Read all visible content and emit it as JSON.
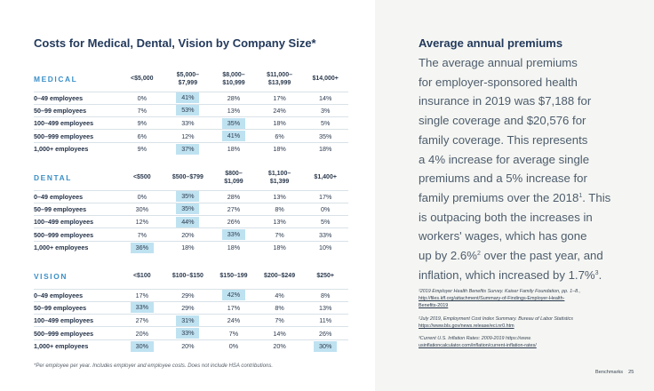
{
  "left_title": "Costs for Medical, Dental, Vision by Company Size*",
  "tables": [
    {
      "category": "MEDICAL",
      "columns": [
        "<$5,000",
        "$5,000–\n$7,999",
        "$8,000–\n$10,999",
        "$11,000–\n$13,999",
        "$14,000+"
      ],
      "rows": [
        {
          "label": "0–49 employees",
          "values": [
            "0%",
            "41%",
            "28%",
            "17%",
            "14%"
          ],
          "highlight": 1
        },
        {
          "label": "50–99 employees",
          "values": [
            "7%",
            "53%",
            "13%",
            "24%",
            "3%"
          ],
          "highlight": 1
        },
        {
          "label": "100–499 employees",
          "values": [
            "9%",
            "33%",
            "35%",
            "18%",
            "5%"
          ],
          "highlight": 2
        },
        {
          "label": "500–999 employees",
          "values": [
            "6%",
            "12%",
            "41%",
            "6%",
            "35%"
          ],
          "highlight": 2
        },
        {
          "label": "1,000+ employees",
          "values": [
            "9%",
            "37%",
            "18%",
            "18%",
            "18%"
          ],
          "highlight": 1
        }
      ]
    },
    {
      "category": "DENTAL",
      "columns": [
        "<$500",
        "$500–$799",
        "$800–\n$1,099",
        "$1,100–\n$1,399",
        "$1,400+"
      ],
      "rows": [
        {
          "label": "0–49 employees",
          "values": [
            "0%",
            "35%",
            "28%",
            "13%",
            "17%"
          ],
          "highlight": 1
        },
        {
          "label": "50–99 employees",
          "values": [
            "30%",
            "35%",
            "27%",
            "8%",
            "0%"
          ],
          "highlight": 1
        },
        {
          "label": "100–499 employees",
          "values": [
            "12%",
            "44%",
            "26%",
            "13%",
            "5%"
          ],
          "highlight": 1
        },
        {
          "label": "500–999 employees",
          "values": [
            "7%",
            "20%",
            "33%",
            "7%",
            "33%"
          ],
          "highlight": 2
        },
        {
          "label": "1,000+ employees",
          "values": [
            "36%",
            "18%",
            "18%",
            "18%",
            "10%"
          ],
          "highlight": 0
        }
      ]
    },
    {
      "category": "VISION",
      "columns": [
        "<$100",
        "$100–$150",
        "$150–199",
        "$200–$249",
        "$250+"
      ],
      "rows": [
        {
          "label": "0–49 employees",
          "values": [
            "17%",
            "29%",
            "42%",
            "4%",
            "8%"
          ],
          "highlight": 2
        },
        {
          "label": "50–99 employees",
          "values": [
            "33%",
            "29%",
            "17%",
            "8%",
            "13%"
          ],
          "highlight": 0
        },
        {
          "label": "100–499 employees",
          "values": [
            "27%",
            "31%",
            "24%",
            "7%",
            "11%"
          ],
          "highlight": 1
        },
        {
          "label": "500–999 employees",
          "values": [
            "20%",
            "33%",
            "7%",
            "14%",
            "26%"
          ],
          "highlight": 1
        },
        {
          "label": "1,000+ employees",
          "values": [
            "30%",
            "20%",
            "0%",
            "20%",
            "30%"
          ],
          "highlight": [
            0,
            4
          ]
        }
      ]
    }
  ],
  "footnote": "*Per employee per year. Includes employer and employee costs. Does not include HSA contributions.",
  "right_title": "Average annual premiums",
  "body_lines": [
    {
      "text": "The average annual premiums"
    },
    {
      "text": "for employer-sponsored health"
    },
    {
      "text": "insurance in 2019 was $7,188 for"
    },
    {
      "text": "single coverage and $20,576 for"
    },
    {
      "text": "family coverage. This represents"
    },
    {
      "text": "a 4% increase for average single"
    },
    {
      "text": "premiums and a 5% increase for"
    },
    {
      "text": "family premiums over the 2018",
      "sup": "1",
      "after": ". This"
    },
    {
      "text": "is outpacing both the increases in"
    },
    {
      "text": "workers' wages, which has gone"
    },
    {
      "text": "up by 2.6%",
      "sup": "2",
      "after": " over the past year, and"
    },
    {
      "text": "inflation, which increased by 1.7%",
      "sup": "3",
      "after": "."
    }
  ],
  "sources": [
    {
      "lines": [
        {
          "text": "¹2019 Employer Health Benefits Survey. Kaiser Family Foundation, pp. 1–8.,",
          "style": "italic"
        },
        {
          "text": "http://files.kff.org/attachment/Summary-of-Findings-Employer-Health-",
          "style": "link"
        },
        {
          "text": "Benefits-2019",
          "style": "link"
        }
      ]
    },
    {
      "lines": [
        {
          "text": "²July 2019, Employment Cost Index Summary. Bureau of Labor Statistics",
          "style": "italic"
        },
        {
          "text": "https://www.bls.gov/news.release/eci.nr0.htm",
          "style": "link"
        }
      ]
    },
    {
      "lines": [
        {
          "text": "³Current U.S. Inflation Rates: 2009-2019 https://www.",
          "style": "italic"
        },
        {
          "text": "usinflationcalculator.com/inflation/current-inflation-rates/",
          "style": "link"
        }
      ]
    }
  ],
  "page_label": "Benchmarks",
  "page_number": "25",
  "colors": {
    "accent": "#3a8fc7",
    "highlight": "#bfe2f1",
    "title": "#233a5c",
    "right_panel": "#f5f6f3"
  }
}
